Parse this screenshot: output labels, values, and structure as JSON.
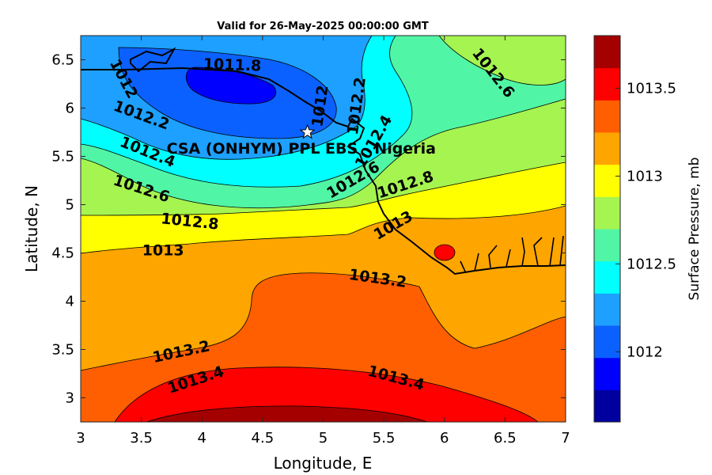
{
  "chart_data": {
    "type": "heatmap",
    "title": "Valid for 26-May-2025 00:00:00 GMT",
    "xlabel": "Longitude, E",
    "ylabel": "Latitude, N",
    "xlim": [
      3,
      7
    ],
    "ylim": [
      2.75,
      6.75
    ],
    "xticks": [
      3,
      3.5,
      4,
      4.5,
      5,
      5.5,
      6,
      6.5,
      7
    ],
    "yticks": [
      3,
      3.5,
      4,
      4.5,
      5,
      5.5,
      6,
      6.5
    ],
    "colorbar_label": "Surface Pressure, mb",
    "colorbar_ticks": [
      1012,
      1012.5,
      1013,
      1013.5
    ],
    "colorbar_range": [
      1011.6,
      1013.8
    ],
    "color_levels": [
      1011.6,
      1011.7,
      1011.8,
      1011.9,
      1012.0,
      1012.1,
      1012.2,
      1012.3,
      1012.4,
      1012.5,
      1012.6,
      1012.7,
      1012.8,
      1012.9,
      1013.0,
      1013.1,
      1013.2,
      1013.3,
      1013.4,
      1013.5,
      1013.6,
      1013.7,
      1013.8
    ],
    "colors": [
      "#00009f",
      "#0000ff",
      "#0b61ff",
      "#1da0ff",
      "#00ffff",
      "#50f6a5",
      "#a5f450",
      "#ffff00",
      "#ffa500",
      "#ff5f00",
      "#ff0000",
      "#a50000"
    ],
    "contour_labels": [
      {
        "value": "1011.8",
        "lon": 4.25,
        "lat": 6.44,
        "angle": 2
      },
      {
        "value": "1012",
        "lon": 3.35,
        "lat": 6.3,
        "angle": 62
      },
      {
        "value": "1012",
        "lon": 4.98,
        "lat": 6.02,
        "angle": -82
      },
      {
        "value": "1012.2",
        "lon": 3.5,
        "lat": 5.92,
        "angle": 20
      },
      {
        "value": "1012.2",
        "lon": 5.28,
        "lat": 6.02,
        "angle": -82
      },
      {
        "value": "1012.4",
        "lon": 3.55,
        "lat": 5.54,
        "angle": 22
      },
      {
        "value": "1012.4",
        "lon": 5.42,
        "lat": 5.65,
        "angle": -60
      },
      {
        "value": "1012.6",
        "lon": 3.5,
        "lat": 5.16,
        "angle": 18
      },
      {
        "value": "1012.6",
        "lon": 5.25,
        "lat": 5.25,
        "angle": -30
      },
      {
        "value": "1012.6",
        "lon": 6.4,
        "lat": 6.36,
        "angle": 52
      },
      {
        "value": "1012.8",
        "lon": 3.9,
        "lat": 4.82,
        "angle": 6
      },
      {
        "value": "1012.8",
        "lon": 5.68,
        "lat": 5.2,
        "angle": -18
      },
      {
        "value": "1013",
        "lon": 3.68,
        "lat": 4.52,
        "angle": 0
      },
      {
        "value": "1013",
        "lon": 5.58,
        "lat": 4.78,
        "angle": -30
      },
      {
        "value": "1013.2",
        "lon": 5.45,
        "lat": 4.23,
        "angle": 8
      },
      {
        "value": "1013.2",
        "lon": 3.83,
        "lat": 3.47,
        "angle": -12
      },
      {
        "value": "1013.4",
        "lon": 3.95,
        "lat": 3.18,
        "angle": -18
      },
      {
        "value": "1013.4",
        "lon": 5.6,
        "lat": 3.2,
        "angle": 15
      }
    ],
    "annotation": {
      "text": "CSA (ONHYM) PPL EBS - Nigeria",
      "lon": 4.87,
      "lat": 5.75
    },
    "marker": {
      "symbol": "star",
      "lon": 4.87,
      "lat": 5.75
    }
  }
}
